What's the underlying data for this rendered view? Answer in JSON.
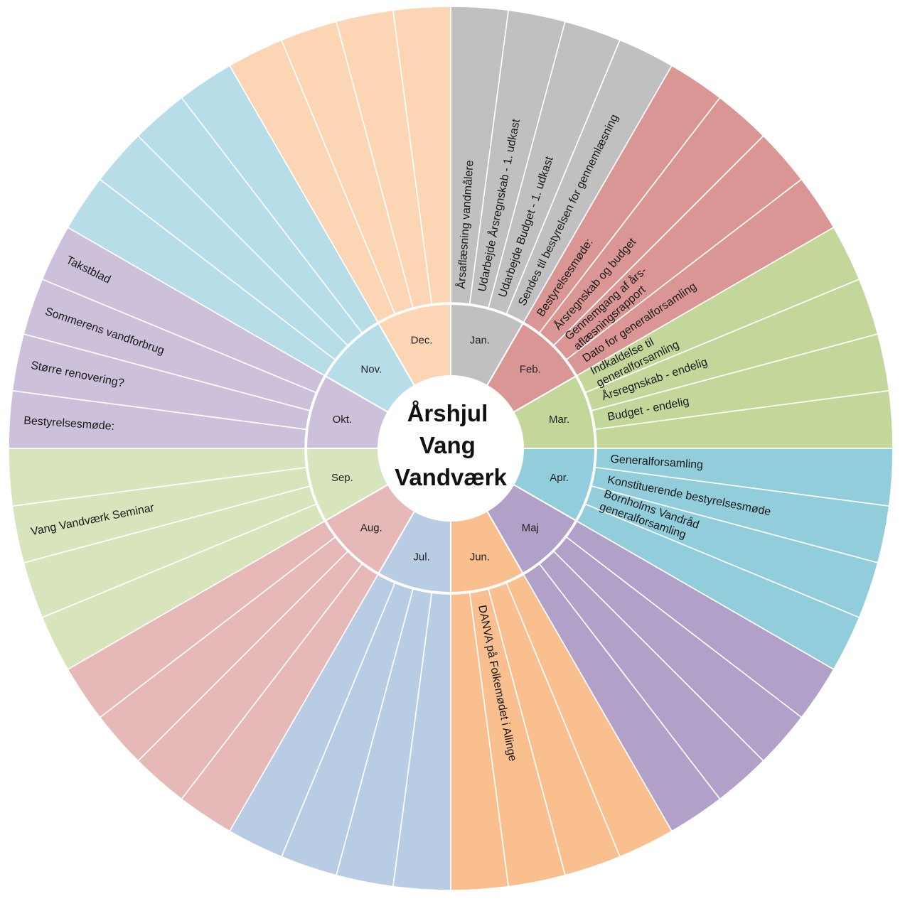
{
  "title_lines": [
    "Årshjul",
    "Vang",
    "Vandværk"
  ],
  "months": [
    {
      "key": "jan",
      "label": "Jan.",
      "color": "#c0c0c0",
      "inner": "#c0c0c0",
      "items": [
        "Årsaflæsning vandmålere",
        "Udarbejde Årsregnskab - 1. udkast",
        "Udarbejde Budget - 1. udkast",
        "Sendes til bestyrelsen for gennemlæsning"
      ]
    },
    {
      "key": "feb",
      "label": "Feb.",
      "color": "#da9694",
      "inner": "#da9694",
      "items": [
        "Bestyrelsesmøde:",
        "Årsregnskab og budget",
        "Gennemgang af års-|aflæsningsrapport",
        "Dato for generalforsamling"
      ]
    },
    {
      "key": "mar",
      "label": "Mar.",
      "color": "#c4d79b",
      "inner": "#c4d79b",
      "items": [
        "Indkaldelse til|generalforsamling",
        "Årsregnskab - endelig",
        "Budget - endelig",
        ""
      ]
    },
    {
      "key": "apr",
      "label": "Apr.",
      "color": "#92cddc",
      "inner": "#92cddc",
      "items": [
        "Generalforsamling",
        "Konstituerende bestyrelsesmøde",
        "Bornholms Vandråd|generalforsamling",
        ""
      ]
    },
    {
      "key": "maj",
      "label": "Maj",
      "color": "#b1a0c7",
      "inner": "#b1a0c7",
      "items": [
        "",
        "",
        "",
        ""
      ]
    },
    {
      "key": "jun",
      "label": "Jun.",
      "color": "#fabf8f",
      "inner": "#fabf8f",
      "items": [
        "",
        "",
        "DANVA på Folkemødet i Allinge",
        ""
      ]
    },
    {
      "key": "jul",
      "label": "Jul.",
      "color": "#b8cce4",
      "inner": "#b8cce4",
      "items": [
        "",
        "",
        "",
        ""
      ]
    },
    {
      "key": "aug",
      "label": "Aug.",
      "color": "#e6b8b7",
      "inner": "#e6b8b7",
      "items": [
        "",
        "",
        "",
        ""
      ]
    },
    {
      "key": "sep",
      "label": "Sep.",
      "color": "#d8e4bc",
      "inner": "#d8e4bc",
      "items": [
        "",
        "",
        "Vang Vandværk Seminar",
        ""
      ]
    },
    {
      "key": "okt",
      "label": "Okt.",
      "color": "#ccc0da",
      "inner": "#ccc0da",
      "items": [
        "Bestyrelsesmøde:",
        "Større renovering?",
        "Sommerens vandforbrug",
        "Takstblad"
      ]
    },
    {
      "key": "nov",
      "label": "Nov.",
      "color": "#b7dee8",
      "inner": "#b7dee8",
      "items": [
        "",
        "",
        "",
        ""
      ]
    },
    {
      "key": "dec",
      "label": "Dec.",
      "color": "#fcd5b4",
      "inner": "#fcd5b4",
      "items": [
        "",
        "",
        "",
        ""
      ]
    }
  ]
}
